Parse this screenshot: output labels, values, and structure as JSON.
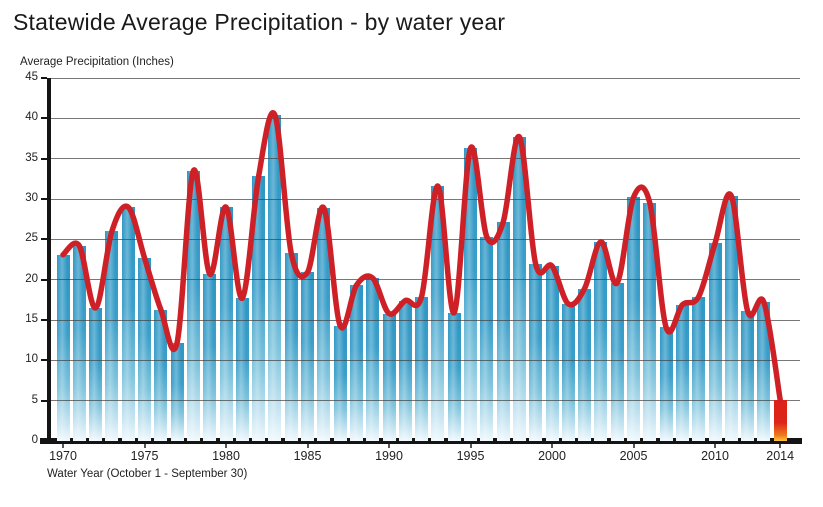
{
  "title": "Statewide Average Precipitation - by water year",
  "y_axis": {
    "title": "Average Precipitation (Inches)",
    "ticks": [
      0,
      5,
      10,
      15,
      20,
      25,
      30,
      35,
      40,
      45
    ]
  },
  "x_axis": {
    "title": "Water Year (October 1 - September 30)",
    "ticks": [
      1970,
      1975,
      1980,
      1985,
      1990,
      1995,
      2000,
      2005,
      2010,
      2014
    ]
  },
  "colors": {
    "bar_blue_top": "#2d96c3",
    "bar_blue_fade": "#f0f9fd",
    "highlight_red_top": "#de2119",
    "highlight_orange_bottom": "#ffc43c",
    "trend_line_red": "#ce2127",
    "axis_black": "#141414",
    "gridline_gray": "#444444"
  },
  "chart_data": {
    "type": "bar",
    "title": "Statewide Average Precipitation - by water year",
    "xlabel": "Water Year (October 1 - September 30)",
    "ylabel": "Average Precipitation (Inches)",
    "ylim": [
      0,
      45
    ],
    "y_tick_step": 5,
    "x_tick_labels": [
      "1970",
      "1975",
      "1980",
      "1985",
      "1990",
      "1995",
      "2000",
      "2005",
      "2010",
      "2014"
    ],
    "grid": true,
    "categories": [
      1970,
      1971,
      1972,
      1973,
      1974,
      1975,
      1976,
      1977,
      1978,
      1979,
      1980,
      1981,
      1982,
      1983,
      1984,
      1985,
      1986,
      1987,
      1988,
      1989,
      1990,
      1991,
      1992,
      1993,
      1994,
      1995,
      1996,
      1997,
      1998,
      1999,
      2000,
      2001,
      2002,
      2003,
      2004,
      2005,
      2006,
      2007,
      2008,
      2009,
      2010,
      2011,
      2012,
      2013,
      2014
    ],
    "values": [
      23.1,
      24.2,
      16.5,
      26.0,
      29.0,
      22.7,
      16.3,
      12.2,
      33.5,
      20.7,
      29.0,
      17.7,
      32.8,
      40.4,
      23.3,
      20.9,
      28.9,
      14.3,
      19.3,
      20.2,
      15.8,
      17.4,
      17.9,
      31.6,
      15.9,
      36.3,
      25.3,
      27.1,
      37.7,
      21.9,
      21.7,
      17.0,
      18.9,
      24.7,
      19.6,
      30.2,
      29.5,
      14.1,
      16.9,
      17.9,
      24.5,
      30.4,
      16.1,
      17.2,
      5.1
    ],
    "overlay_line": {
      "name": "smoothed trend (spline through annual values)",
      "color": "#ce2127"
    },
    "highlight": {
      "year": 2014,
      "value": 5.1,
      "style": "red-orange gradient bar"
    }
  }
}
